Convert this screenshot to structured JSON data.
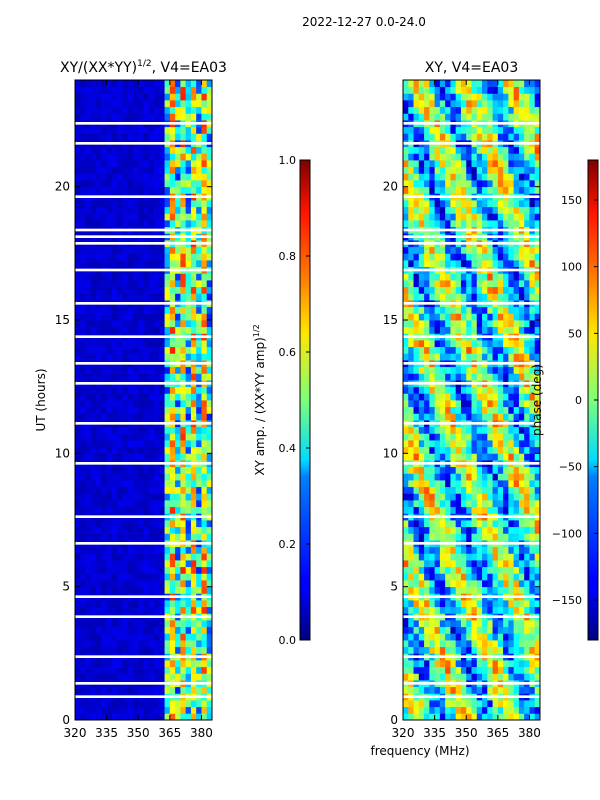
{
  "header": {
    "date_range": "2022-12-27 0.0-24.0"
  },
  "chart_data": [
    {
      "type": "heatmap",
      "title_main": "XY/(XX*YY)",
      "title_exp": "1/2",
      "title_suffix": ", V4=EA03",
      "xlabel": "",
      "ylabel": "UT (hours)",
      "xlim": [
        320,
        385
      ],
      "ylim": [
        0,
        24
      ],
      "xticks": [
        320,
        335,
        350,
        365,
        380
      ],
      "yticks": [
        0,
        5,
        10,
        15,
        20
      ],
      "colorbar": {
        "label_main": "XY amp. / (XX*YY amp)",
        "label_exp": "1/2",
        "range": [
          0.0,
          1.0
        ],
        "ticks": [
          "0.0",
          "0.2",
          "0.4",
          "0.6",
          "0.8",
          "1.0"
        ],
        "tick_values": [
          0.0,
          0.2,
          0.4,
          0.6,
          0.8,
          1.0
        ]
      }
    },
    {
      "type": "heatmap",
      "title": "XY, V4=EA03",
      "xlabel": "frequency (MHz)",
      "ylabel": "",
      "xlim": [
        320,
        385
      ],
      "ylim": [
        0,
        24
      ],
      "xticks": [
        320,
        335,
        350,
        365,
        380
      ],
      "yticks": [
        0,
        5,
        10,
        15,
        20
      ],
      "colorbar": {
        "label": "phase (deg)",
        "range": [
          -180,
          180
        ],
        "ticks": [
          "150",
          "100",
          "50",
          "0",
          "−50",
          "−100",
          "−150"
        ],
        "tick_values": [
          150,
          100,
          50,
          0,
          -50,
          -100,
          -150
        ]
      }
    }
  ]
}
